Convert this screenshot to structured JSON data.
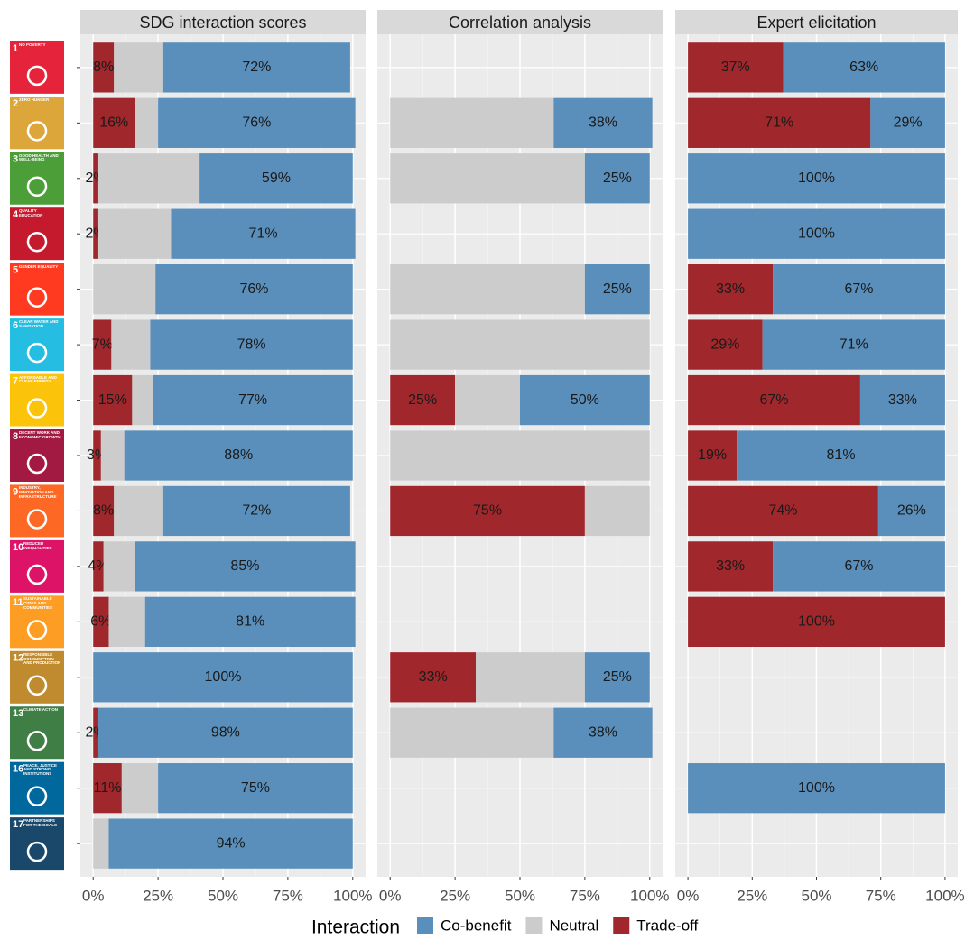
{
  "sdg_icons": [
    {
      "number": "1",
      "name": "NO POVERTY",
      "color": "#e5243b"
    },
    {
      "number": "2",
      "name": "ZERO HUNGER",
      "color": "#dda63a"
    },
    {
      "number": "3",
      "name": "GOOD HEALTH AND WELL-BEING",
      "color": "#4c9f38"
    },
    {
      "number": "4",
      "name": "QUALITY EDUCATION",
      "color": "#c5192d"
    },
    {
      "number": "5",
      "name": "GENDER EQUALITY",
      "color": "#ff3a21"
    },
    {
      "number": "6",
      "name": "CLEAN WATER AND SANITATION",
      "color": "#26bde2"
    },
    {
      "number": "7",
      "name": "AFFORDABLE AND CLEAN ENERGY",
      "color": "#fcc30b"
    },
    {
      "number": "8",
      "name": "DECENT WORK AND ECONOMIC GROWTH",
      "color": "#a21942"
    },
    {
      "number": "9",
      "name": "INDUSTRY, INNOVATION AND INFRASTRUCTURE",
      "color": "#fd6925"
    },
    {
      "number": "10",
      "name": "REDUCED INEQUALITIES",
      "color": "#dd1367"
    },
    {
      "number": "11",
      "name": "SUSTAINABLE CITIES AND COMMUNITIES",
      "color": "#fd9d24"
    },
    {
      "number": "12",
      "name": "RESPONSIBLE CONSUMPTION AND PRODUCTION",
      "color": "#bf8b2e"
    },
    {
      "number": "13",
      "name": "CLIMATE ACTION",
      "color": "#3f7e44"
    },
    {
      "number": "16",
      "name": "PEACE, JUSTICE AND STRONG INSTITUTIONS",
      "color": "#00689d"
    },
    {
      "number": "17",
      "name": "PARTNERSHIPS FOR THE GOALS",
      "color": "#19486a"
    }
  ],
  "legend_title": "Interaction",
  "chart_data": [
    {
      "type": "bar",
      "orientation": "horizontal",
      "stacked": true,
      "title": "SDG interaction scores",
      "xlim": [
        0,
        100
      ],
      "xticks": [
        {
          "value": 0,
          "label": "0%"
        },
        {
          "value": 25,
          "label": "25%"
        },
        {
          "value": 50,
          "label": "50%"
        },
        {
          "value": 75,
          "label": "75%"
        },
        {
          "value": 100,
          "label": "100%"
        }
      ],
      "grid": true,
      "series": [
        {
          "name": "Co-benefit",
          "color": "#5a8fbb",
          "values": [
            72,
            76,
            59,
            71,
            76,
            78,
            77,
            88,
            72,
            85,
            81,
            100,
            98,
            75,
            94
          ],
          "value_labels": [
            "72%",
            "76%",
            "59%",
            "71%",
            "76%",
            "78%",
            "77%",
            "88%",
            "72%",
            "85%",
            "81%",
            "100%",
            "98%",
            "75%",
            "94%"
          ]
        },
        {
          "name": "Neutral",
          "color": "#cccccc",
          "values": [
            19,
            9,
            39,
            28,
            24,
            15,
            8,
            9,
            19,
            12,
            14,
            0,
            0,
            14,
            6
          ]
        },
        {
          "name": "Trade-off",
          "color": "#a0272b",
          "values": [
            8,
            16,
            2,
            2,
            0,
            7,
            15,
            3,
            8,
            4,
            6,
            0,
            2,
            11,
            0
          ],
          "value_labels": [
            "8%",
            "16%",
            "2%",
            "2%",
            null,
            "7%",
            "15%",
            "3%",
            "8%",
            "4%",
            "6%",
            null,
            "2%",
            "11%",
            null
          ]
        }
      ]
    },
    {
      "type": "bar",
      "orientation": "horizontal",
      "stacked": true,
      "title": "Correlation analysis",
      "xlim": [
        0,
        100
      ],
      "xticks": [
        {
          "value": 0,
          "label": "0%"
        },
        {
          "value": 25,
          "label": "25%"
        },
        {
          "value": 50,
          "label": "50%"
        },
        {
          "value": 75,
          "label": "75%"
        },
        {
          "value": 100,
          "label": "100%"
        }
      ],
      "grid": true,
      "series": [
        {
          "name": "Co-benefit",
          "color": "#5a8fbb",
          "values": [
            null,
            38,
            25,
            null,
            25,
            0,
            50,
            0,
            0,
            null,
            null,
            25,
            38,
            null,
            null
          ],
          "value_labels": [
            null,
            "38%",
            "25%",
            null,
            "25%",
            null,
            "50%",
            null,
            null,
            null,
            null,
            "25%",
            "38%",
            null,
            null
          ]
        },
        {
          "name": "Neutral",
          "color": "#cccccc",
          "values": [
            null,
            63,
            75,
            null,
            75,
            100,
            25,
            100,
            25,
            null,
            null,
            42,
            63,
            null,
            null
          ]
        },
        {
          "name": "Trade-off",
          "color": "#a0272b",
          "values": [
            null,
            0,
            0,
            null,
            0,
            0,
            25,
            0,
            75,
            null,
            null,
            33,
            0,
            null,
            null
          ],
          "value_labels": [
            null,
            null,
            null,
            null,
            null,
            null,
            "25%",
            null,
            "75%",
            null,
            null,
            "33%",
            null,
            null,
            null
          ]
        }
      ]
    },
    {
      "type": "bar",
      "orientation": "horizontal",
      "stacked": true,
      "title": "Expert elicitation",
      "xlim": [
        0,
        100
      ],
      "xticks": [
        {
          "value": 0,
          "label": "0%"
        },
        {
          "value": 25,
          "label": "25%"
        },
        {
          "value": 50,
          "label": "50%"
        },
        {
          "value": 75,
          "label": "75%"
        },
        {
          "value": 100,
          "label": "100%"
        }
      ],
      "grid": true,
      "series": [
        {
          "name": "Co-benefit",
          "color": "#5a8fbb",
          "values": [
            63,
            29,
            100,
            100,
            67,
            71,
            33,
            81,
            26,
            67,
            0,
            null,
            null,
            100,
            null
          ],
          "value_labels": [
            "63%",
            "29%",
            "100%",
            "100%",
            "67%",
            "71%",
            "33%",
            "81%",
            "26%",
            "67%",
            null,
            null,
            null,
            "100%",
            null
          ]
        },
        {
          "name": "Neutral",
          "color": "#cccccc",
          "values": [
            0,
            0,
            0,
            0,
            0,
            0,
            0,
            0,
            0,
            0,
            0,
            null,
            null,
            0,
            null
          ]
        },
        {
          "name": "Trade-off",
          "color": "#a0272b",
          "values": [
            37,
            71,
            0,
            0,
            33,
            29,
            67,
            19,
            74,
            33,
            100,
            null,
            null,
            0,
            null
          ],
          "value_labels": [
            "37%",
            "71%",
            null,
            null,
            "33%",
            "29%",
            "67%",
            "19%",
            "74%",
            "33%",
            "100%",
            null,
            null,
            null,
            null
          ]
        }
      ]
    }
  ]
}
